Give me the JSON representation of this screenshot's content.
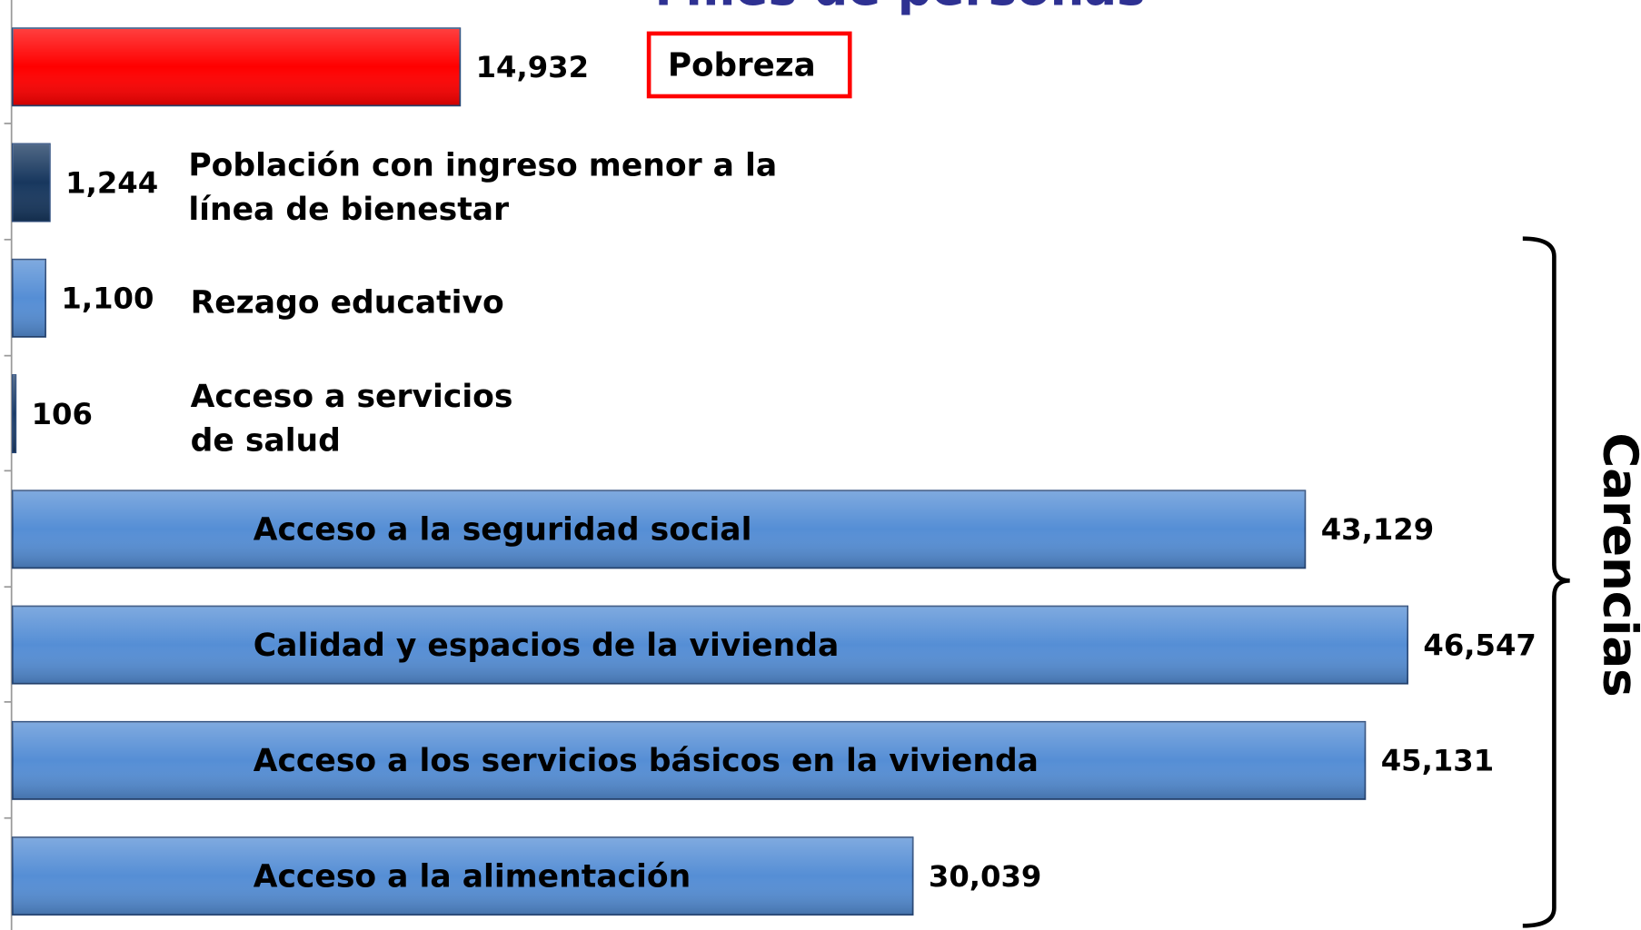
{
  "chart_data": {
    "type": "bar",
    "orientation": "horizontal",
    "title": "Miles de personas",
    "categories": [
      "Pobreza",
      "Población con ingreso menor a la línea de bienestar",
      "Rezago educativo",
      "Acceso a servicios de salud",
      "Acceso a  la seguridad social",
      "Calidad y espacios de la vivienda",
      "Acceso a los servicios básicos en la vivienda",
      "Acceso a la alimentación"
    ],
    "values": [
      14932,
      1244,
      1100,
      106,
      43129,
      46547,
      45131,
      30039
    ],
    "value_labels": [
      "14,932",
      "1,244",
      "1,100",
      "106",
      "43,129",
      "46,547",
      "45,131",
      "30,039"
    ],
    "colors": [
      "#ff0000",
      "#17375e",
      "#558ed5",
      "#17375e",
      "#558ed5",
      "#558ed5",
      "#558ed5",
      "#558ed5"
    ],
    "annotation": "Carencias"
  }
}
